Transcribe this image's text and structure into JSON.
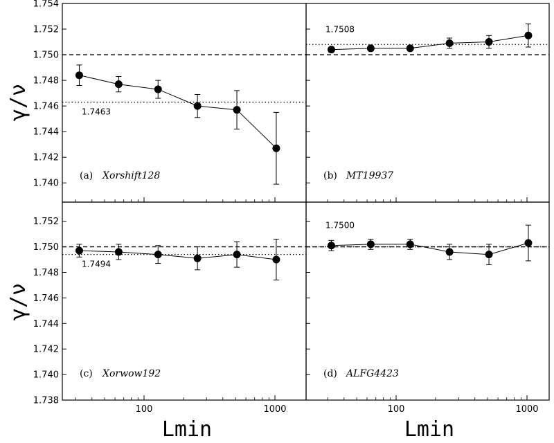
{
  "chart_data": [
    {
      "type": "scatter",
      "panel_label": "(a)",
      "generator": "Xorshift128",
      "xscale": "log",
      "xlim": [
        20,
        1500
      ],
      "ylim": [
        1.738,
        1.754
      ],
      "reference_line": 1.75,
      "fit_value": 1.7463,
      "fit_label": "1.7463",
      "points": [
        {
          "x": 32,
          "y": 1.7484,
          "err": 0.0008
        },
        {
          "x": 64,
          "y": 1.7477,
          "err": 0.0006
        },
        {
          "x": 128,
          "y": 1.7473,
          "err": 0.0007
        },
        {
          "x": 256,
          "y": 1.746,
          "err": 0.0009
        },
        {
          "x": 512,
          "y": 1.7457,
          "err": 0.0015
        },
        {
          "x": 1024,
          "y": 1.7427,
          "err": 0.0028
        }
      ]
    },
    {
      "type": "scatter",
      "panel_label": "(b)",
      "generator": "MT19937",
      "xscale": "log",
      "xlim": [
        20,
        1500
      ],
      "ylim": [
        1.738,
        1.754
      ],
      "reference_line": 1.75,
      "fit_value": 1.7508,
      "fit_label": "1.7508",
      "points": [
        {
          "x": 32,
          "y": 1.7504,
          "err": 0.0002
        },
        {
          "x": 64,
          "y": 1.7505,
          "err": 0.0002
        },
        {
          "x": 128,
          "y": 1.7505,
          "err": 0.0002
        },
        {
          "x": 256,
          "y": 1.7509,
          "err": 0.0004
        },
        {
          "x": 512,
          "y": 1.751,
          "err": 0.0005
        },
        {
          "x": 1024,
          "y": 1.7515,
          "err": 0.0009
        }
      ]
    },
    {
      "type": "scatter",
      "panel_label": "(c)",
      "generator": "Xorwow192",
      "xscale": "log",
      "xlim": [
        20,
        1500
      ],
      "ylim": [
        1.738,
        1.754
      ],
      "reference_line": 1.75,
      "fit_value": 1.7494,
      "fit_label": "1.7494",
      "points": [
        {
          "x": 32,
          "y": 1.7497,
          "err": 0.0005
        },
        {
          "x": 64,
          "y": 1.7496,
          "err": 0.0006
        },
        {
          "x": 128,
          "y": 1.7494,
          "err": 0.0007
        },
        {
          "x": 256,
          "y": 1.7491,
          "err": 0.0009
        },
        {
          "x": 512,
          "y": 1.7494,
          "err": 0.001
        },
        {
          "x": 1024,
          "y": 1.749,
          "err": 0.0016
        }
      ]
    },
    {
      "type": "scatter",
      "panel_label": "(d)",
      "generator": "ALFG4423",
      "xscale": "log",
      "xlim": [
        20,
        1500
      ],
      "ylim": [
        1.738,
        1.754
      ],
      "reference_line": 1.75,
      "fit_value": 1.75,
      "fit_label": "1.7500",
      "points": [
        {
          "x": 32,
          "y": 1.7501,
          "err": 0.0004
        },
        {
          "x": 64,
          "y": 1.7502,
          "err": 0.0004
        },
        {
          "x": 128,
          "y": 1.7502,
          "err": 0.0004
        },
        {
          "x": 256,
          "y": 1.7496,
          "err": 0.0006
        },
        {
          "x": 512,
          "y": 1.7494,
          "err": 0.0008
        },
        {
          "x": 1024,
          "y": 1.7503,
          "err": 0.0014
        }
      ]
    }
  ],
  "axes": {
    "ylabel": "γ/ν",
    "xlabel": "Lmin",
    "x_ticks": [
      {
        "value": 100,
        "label": "100"
      },
      {
        "value": 1000,
        "label": "1000"
      }
    ],
    "y_ticks_top": [
      {
        "value": 1.74,
        "label": "1.740"
      },
      {
        "value": 1.742,
        "label": "1.742"
      },
      {
        "value": 1.744,
        "label": "1.744"
      },
      {
        "value": 1.746,
        "label": "1.746"
      },
      {
        "value": 1.748,
        "label": "1.748"
      },
      {
        "value": 1.75,
        "label": "1.750"
      },
      {
        "value": 1.752,
        "label": "1.752"
      },
      {
        "value": 1.754,
        "label": "1.754"
      }
    ],
    "y_ticks_bottom": [
      {
        "value": 1.738,
        "label": "1.738"
      },
      {
        "value": 1.74,
        "label": "1.740"
      },
      {
        "value": 1.742,
        "label": "1.742"
      },
      {
        "value": 1.744,
        "label": "1.744"
      },
      {
        "value": 1.746,
        "label": "1.746"
      },
      {
        "value": 1.748,
        "label": "1.748"
      },
      {
        "value": 1.75,
        "label": "1.750"
      },
      {
        "value": 1.752,
        "label": "1.752"
      }
    ]
  }
}
